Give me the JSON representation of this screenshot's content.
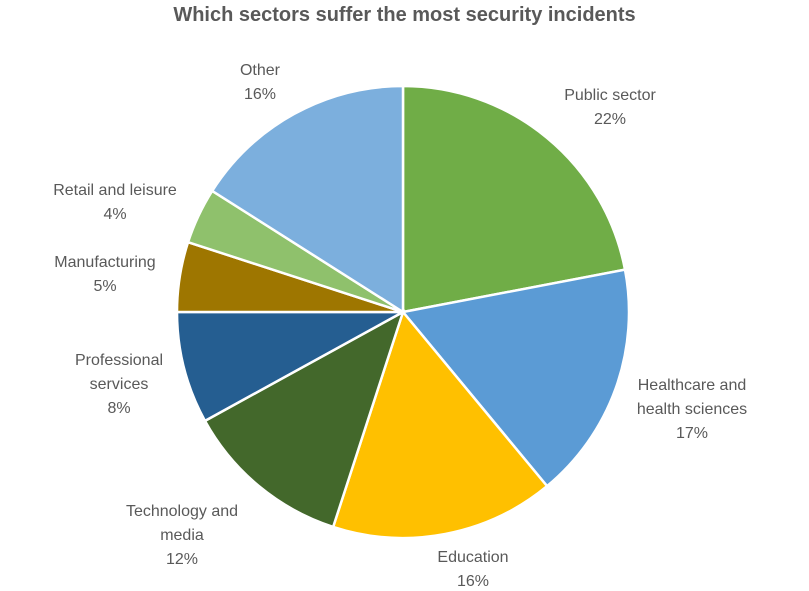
{
  "chart_data": {
    "type": "pie",
    "title": "Which sectors suffer the most security incidents",
    "unit": "%",
    "slices": [
      {
        "label": "Public sector",
        "display_lines": [
          "Public sector"
        ],
        "value": 22,
        "value_label": "22%",
        "color": "#70AD47"
      },
      {
        "label": "Healthcare and health sciences",
        "display_lines": [
          "Healthcare and",
          "health sciences"
        ],
        "value": 17,
        "value_label": "17%",
        "color": "#5B9BD5"
      },
      {
        "label": "Education",
        "display_lines": [
          "Education"
        ],
        "value": 16,
        "value_label": "16%",
        "color": "#FFC000"
      },
      {
        "label": "Technology and media",
        "display_lines": [
          "Technology and",
          "media"
        ],
        "value": 12,
        "value_label": "12%",
        "color": "#43682B"
      },
      {
        "label": "Professional services",
        "display_lines": [
          "Professional",
          "services"
        ],
        "value": 8,
        "value_label": "8%",
        "color": "#255E91"
      },
      {
        "label": "Manufacturing",
        "display_lines": [
          "Manufacturing"
        ],
        "value": 5,
        "value_label": "5%",
        "color": "#9E7600"
      },
      {
        "label": "Retail and leisure",
        "display_lines": [
          "Retail and leisure"
        ],
        "value": 4,
        "value_label": "4%",
        "color": "#8FC16C"
      },
      {
        "label": "Other",
        "display_lines": [
          "Other"
        ],
        "value": 16,
        "value_label": "16%",
        "color": "#7CAFDD"
      }
    ],
    "start_angle": "12 o'clock",
    "direction": "clockwise",
    "legend": "none",
    "data_labels": "outside"
  }
}
